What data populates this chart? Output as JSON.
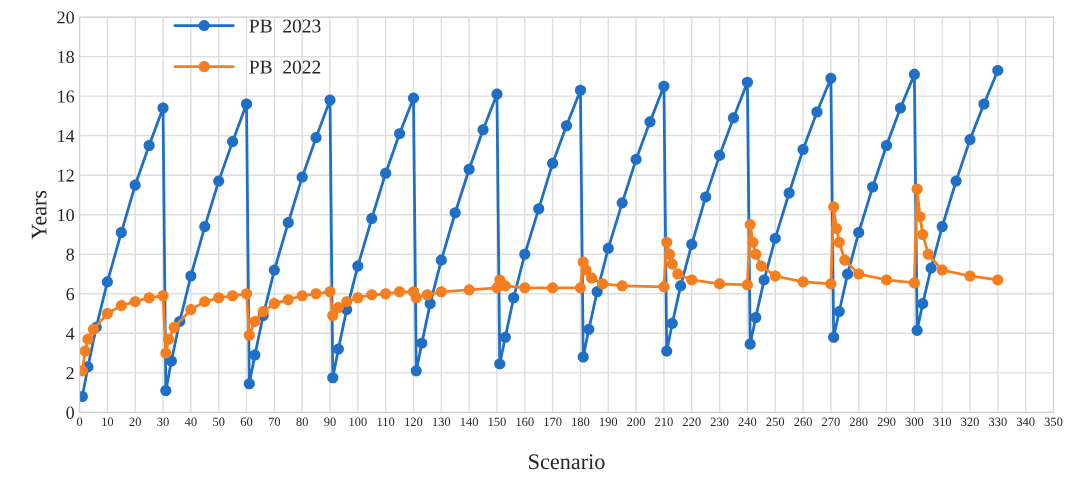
{
  "chart_data": {
    "type": "line",
    "xlabel": "Scenario",
    "ylabel": "Years",
    "xlim": [
      0,
      350
    ],
    "xticks": [
      0,
      10,
      20,
      30,
      40,
      50,
      60,
      70,
      80,
      90,
      100,
      110,
      120,
      130,
      140,
      150,
      160,
      170,
      180,
      190,
      200,
      210,
      220,
      230,
      240,
      250,
      260,
      270,
      280,
      290,
      300,
      310,
      320,
      330,
      340,
      350
    ],
    "ylim": [
      0,
      20
    ],
    "yticks": [
      0,
      2,
      4,
      6,
      8,
      10,
      12,
      14,
      16,
      18,
      20
    ],
    "grid": true,
    "legend": "top left",
    "marker": "circle",
    "line_style": "solid",
    "series": [
      {
        "name": "PB  2023",
        "color": "#1f6fc6",
        "x": [
          1,
          3,
          6,
          10,
          15,
          20,
          25,
          30,
          31,
          33,
          36,
          40,
          45,
          50,
          55,
          60,
          61,
          63,
          66,
          70,
          75,
          80,
          85,
          90,
          91,
          93,
          96,
          100,
          105,
          110,
          115,
          120,
          121,
          123,
          126,
          130,
          135,
          140,
          145,
          150,
          151,
          153,
          156,
          160,
          165,
          170,
          175,
          180,
          181,
          183,
          186,
          190,
          195,
          200,
          205,
          210,
          211,
          213,
          216,
          220,
          225,
          230,
          235,
          240,
          241,
          243,
          246,
          250,
          255,
          260,
          265,
          270,
          271,
          273,
          276,
          280,
          285,
          290,
          295,
          300,
          301,
          303,
          306,
          310,
          315,
          320,
          325,
          330
        ],
        "values": [
          0.8,
          2.3,
          4.3,
          6.6,
          9.1,
          11.5,
          13.5,
          15.4,
          1.1,
          2.6,
          4.6,
          6.9,
          9.4,
          11.7,
          13.7,
          15.6,
          1.45,
          2.9,
          4.9,
          7.2,
          9.6,
          11.9,
          13.9,
          15.8,
          1.75,
          3.2,
          5.2,
          7.4,
          9.8,
          12.1,
          14.1,
          15.9,
          2.1,
          3.5,
          5.5,
          7.7,
          10.1,
          12.3,
          14.3,
          16.1,
          2.45,
          3.8,
          5.8,
          8.0,
          10.3,
          12.6,
          14.5,
          16.3,
          2.8,
          4.2,
          6.1,
          8.3,
          10.6,
          12.8,
          14.7,
          16.5,
          3.1,
          4.5,
          6.4,
          8.5,
          10.9,
          13.0,
          14.9,
          16.7,
          3.45,
          4.8,
          6.7,
          8.8,
          11.1,
          13.3,
          15.2,
          16.9,
          3.8,
          5.1,
          7.0,
          9.1,
          11.4,
          13.5,
          15.4,
          17.1,
          4.15,
          5.5,
          7.3,
          9.4,
          11.7,
          13.8,
          15.6,
          17.3
        ]
      },
      {
        "name": "PB  2022",
        "color": "#f57f20",
        "x": [
          1,
          2,
          3,
          5,
          10,
          15,
          20,
          25,
          30,
          31,
          32,
          34,
          40,
          45,
          50,
          55,
          60,
          61,
          63,
          66,
          70,
          75,
          80,
          85,
          90,
          91,
          93,
          96,
          100,
          105,
          110,
          115,
          120,
          121,
          125,
          130,
          140,
          150,
          151,
          153,
          160,
          170,
          180,
          181,
          182,
          184,
          188,
          195,
          210,
          211,
          212,
          213,
          215,
          220,
          230,
          240,
          241,
          242,
          243,
          245,
          250,
          260,
          270,
          271,
          272,
          273,
          275,
          280,
          290,
          300,
          301,
          302,
          303,
          305,
          310,
          320,
          330
        ],
        "values": [
          2.1,
          3.1,
          3.7,
          4.2,
          5.0,
          5.4,
          5.6,
          5.8,
          5.9,
          3.0,
          3.7,
          4.3,
          5.2,
          5.6,
          5.8,
          5.9,
          6.0,
          3.9,
          4.6,
          5.1,
          5.5,
          5.7,
          5.9,
          6.0,
          6.1,
          4.9,
          5.3,
          5.6,
          5.8,
          5.95,
          6.0,
          6.1,
          6.1,
          5.8,
          5.95,
          6.1,
          6.2,
          6.3,
          6.7,
          6.4,
          6.3,
          6.3,
          6.3,
          7.6,
          7.2,
          6.8,
          6.5,
          6.4,
          6.35,
          8.6,
          8.0,
          7.5,
          7.0,
          6.7,
          6.5,
          6.45,
          9.5,
          8.6,
          8.0,
          7.4,
          6.9,
          6.6,
          6.5,
          10.4,
          9.3,
          8.6,
          7.7,
          7.0,
          6.7,
          6.55,
          11.3,
          9.9,
          9.0,
          8.0,
          7.2,
          6.9,
          6.7
        ]
      }
    ]
  }
}
